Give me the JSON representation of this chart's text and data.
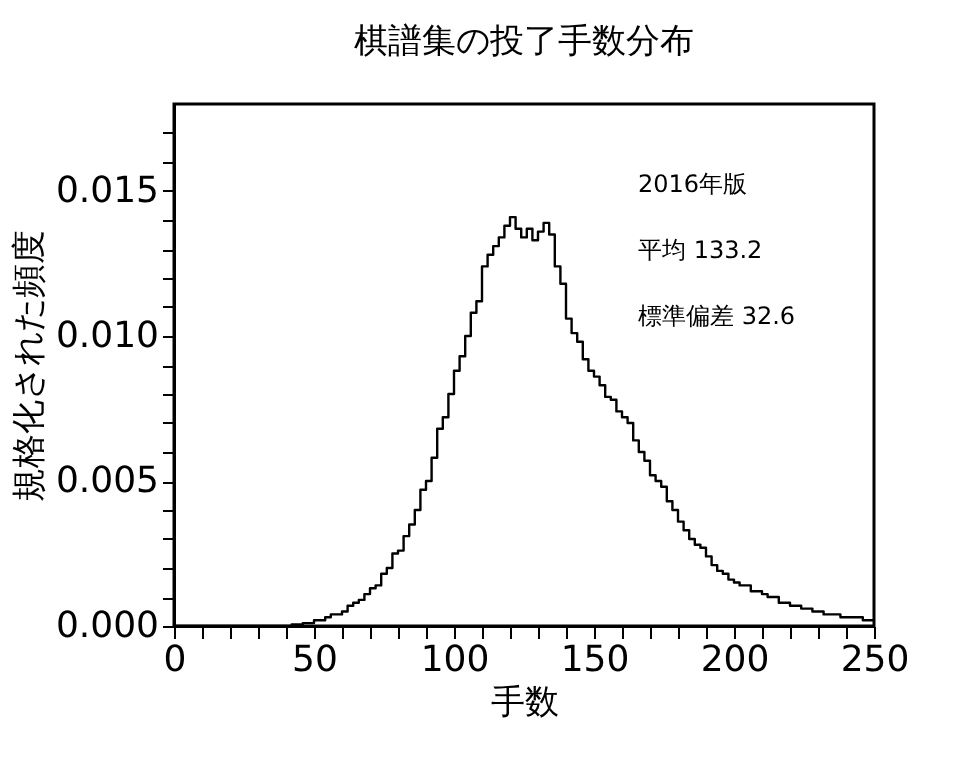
{
  "chart_data": {
    "type": "histogram",
    "title": "棋譜集の投了手数分布",
    "xlabel": "手数",
    "ylabel": "規格化された頻度",
    "color": "#000000",
    "bins": [
      0,
      2,
      4,
      6,
      8,
      10,
      12,
      14,
      16,
      18,
      20,
      22,
      24,
      26,
      28,
      30,
      32,
      34,
      36,
      38,
      40,
      42,
      44,
      46,
      48,
      50,
      52,
      54,
      56,
      58,
      60,
      62,
      64,
      66,
      68,
      70,
      72,
      74,
      76,
      78,
      80,
      82,
      84,
      86,
      88,
      90,
      92,
      94,
      96,
      98,
      100,
      102,
      104,
      106,
      108,
      110,
      112,
      114,
      116,
      118,
      120,
      122,
      124,
      126,
      128,
      130,
      132,
      134,
      136,
      138,
      140,
      142,
      144,
      146,
      148,
      150,
      152,
      154,
      156,
      158,
      160,
      162,
      164,
      166,
      168,
      170,
      172,
      174,
      176,
      178,
      180,
      182,
      184,
      186,
      188,
      190,
      192,
      194,
      196,
      198,
      200,
      202,
      204,
      206,
      208,
      210,
      212,
      214,
      216,
      218,
      220,
      222,
      224,
      226,
      228,
      230,
      232,
      234,
      236,
      238,
      240,
      242,
      244,
      246,
      248,
      250
    ],
    "values": [
      0,
      0,
      0,
      0,
      0,
      0,
      0,
      0,
      0,
      0,
      0,
      0,
      0,
      0,
      0,
      0,
      0,
      0,
      0,
      0,
      0,
      5e-05,
      5e-05,
      0.0001,
      0.0001,
      0.0002,
      0.0002,
      0.0003,
      0.0004,
      0.0004,
      0.0005,
      0.0007,
      0.0008,
      0.0009,
      0.0011,
      0.0013,
      0.0014,
      0.0018,
      0.002,
      0.0025,
      0.0026,
      0.0031,
      0.0035,
      0.004,
      0.0047,
      0.005,
      0.0058,
      0.0068,
      0.0072,
      0.008,
      0.0088,
      0.0093,
      0.01,
      0.0108,
      0.0112,
      0.0124,
      0.0128,
      0.0131,
      0.0134,
      0.0138,
      0.0141,
      0.0137,
      0.0134,
      0.0137,
      0.0133,
      0.0136,
      0.0139,
      0.0135,
      0.0124,
      0.0118,
      0.0106,
      0.0101,
      0.0098,
      0.0092,
      0.0088,
      0.0086,
      0.0083,
      0.0079,
      0.0078,
      0.0074,
      0.0072,
      0.007,
      0.0064,
      0.006,
      0.0057,
      0.0052,
      0.005,
      0.0048,
      0.0043,
      0.004,
      0.0036,
      0.0033,
      0.003,
      0.0028,
      0.0027,
      0.0024,
      0.0021,
      0.0019,
      0.0018,
      0.0016,
      0.0015,
      0.0014,
      0.0014,
      0.0012,
      0.0012,
      0.0011,
      0.001,
      0.001,
      0.0008,
      0.0008,
      0.0007,
      0.0007,
      0.0006,
      0.0006,
      0.0005,
      0.0005,
      0.0004,
      0.0004,
      0.0004,
      0.0003,
      0.0003,
      0.0003,
      0.0003,
      0.0002,
      0.0002
    ],
    "xlim": [
      0,
      250
    ],
    "xticks": [
      0,
      {
        "value": 10,
        "label": null
      },
      {
        "value": 20,
        "label": null
      },
      {
        "value": 30,
        "label": null
      },
      {
        "value": 40,
        "label": null
      },
      50,
      {
        "value": 60,
        "label": null
      },
      {
        "value": 70,
        "label": null
      },
      {
        "value": 80,
        "label": null
      },
      {
        "value": 90,
        "label": null
      },
      100,
      {
        "value": 110,
        "label": null
      },
      {
        "value": 120,
        "label": null
      },
      {
        "value": 130,
        "label": null
      },
      {
        "value": 140,
        "label": null
      },
      150,
      {
        "value": 160,
        "label": null
      },
      {
        "value": 170,
        "label": null
      },
      {
        "value": 180,
        "label": null
      },
      {
        "value": 190,
        "label": null
      },
      200,
      {
        "value": 210,
        "label": null
      },
      {
        "value": 220,
        "label": null
      },
      {
        "value": 230,
        "label": null
      },
      {
        "value": 240,
        "label": null
      },
      250
    ],
    "ylim": [
      0,
      0.018
    ],
    "yticks": [
      {
        "value": 0,
        "label": "0.000"
      },
      {
        "value": 0.001,
        "label": null
      },
      {
        "value": 0.002,
        "label": null
      },
      {
        "value": 0.003,
        "label": null
      },
      {
        "value": 0.004,
        "label": null
      },
      {
        "value": 0.005,
        "label": "0.005"
      },
      {
        "value": 0.006,
        "label": null
      },
      {
        "value": 0.007,
        "label": null
      },
      {
        "value": 0.008,
        "label": null
      },
      {
        "value": 0.009,
        "label": null
      },
      {
        "value": 0.01,
        "label": "0.010"
      },
      {
        "value": 0.011,
        "label": null
      },
      {
        "value": 0.012,
        "label": null
      },
      {
        "value": 0.013,
        "label": null
      },
      {
        "value": 0.014,
        "label": null
      },
      {
        "value": 0.015,
        "label": "0.015"
      },
      {
        "value": 0.016,
        "label": null
      },
      {
        "value": 0.017,
        "label": null
      }
    ],
    "annotations": [
      "2016年版",
      "平均 133.2",
      "標準偏差 32.6"
    ]
  }
}
